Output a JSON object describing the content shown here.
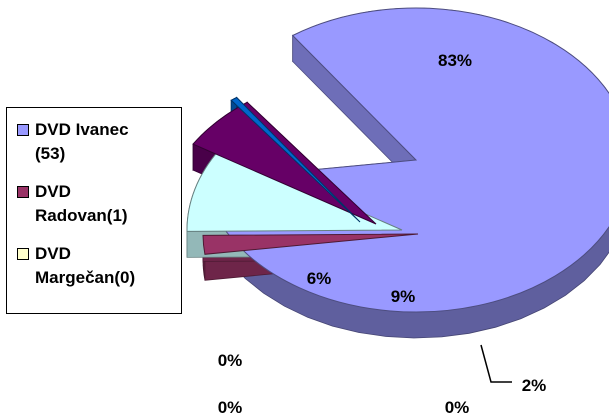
{
  "chart_data": {
    "type": "pie",
    "title": "",
    "style": "3d-exploded",
    "slices": [
      {
        "name": "DVD Ivanec (53)",
        "value": 83,
        "label": "83%",
        "color": "#9999ff"
      },
      {
        "name": "DVD Radovan(1)",
        "value": 2,
        "label": "2%",
        "color": "#993366"
      },
      {
        "name": "DVD Margečan(0)",
        "value": 9,
        "label": "9%",
        "color": "#ccffff"
      },
      {
        "name": "",
        "value": 6,
        "label": "6%",
        "color": "#660066"
      },
      {
        "name": "",
        "value": 0.5,
        "label": "0%",
        "color": "#0066cc"
      }
    ],
    "extra_labels": [
      "0%",
      "0%",
      "0%"
    ],
    "legend_position": "left"
  },
  "legend": {
    "items": [
      {
        "text": "DVD Ivanec\n(53)",
        "color": "#9999ff"
      },
      {
        "text": "DVD\nRadovan(1)",
        "color": "#993366"
      },
      {
        "text": "DVD\nMargečan(0)",
        "color": "#ffffcc"
      }
    ]
  }
}
